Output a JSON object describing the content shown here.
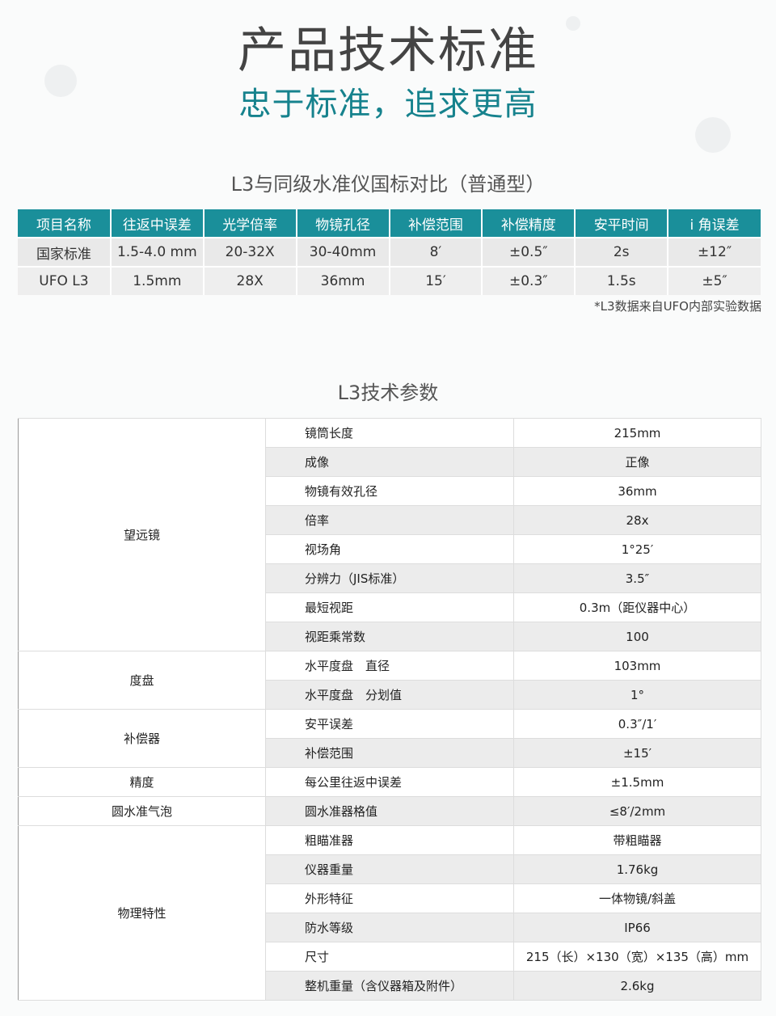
{
  "header": {
    "title": "产品技术标准",
    "subtitle": "忠于标准，追求更高"
  },
  "comparison": {
    "title": "L3与同级水准仪国标对比（普通型）",
    "columns": [
      "项目名称",
      "往返中误差",
      "光学倍率",
      "物镜孔径",
      "补偿范围",
      "补偿精度",
      "安平时间",
      "i 角误差"
    ],
    "rows": [
      [
        "国家标准",
        "1.5-4.0 mm",
        "20-32X",
        "30-40mm",
        "8′",
        "±0.5″",
        "2s",
        "±12″"
      ],
      [
        "UFO L3",
        "1.5mm",
        "28X",
        "36mm",
        "15′",
        "±0.3″",
        "1.5s",
        "±5″"
      ]
    ],
    "note": "*L3数据来自UFO内部实验数据"
  },
  "specs": {
    "title": "L3技术参数",
    "groups": [
      {
        "name": "望远镜",
        "items": [
          [
            "镜筒长度",
            "215mm"
          ],
          [
            "成像",
            "正像"
          ],
          [
            "物镜有效孔径",
            "36mm"
          ],
          [
            "倍率",
            "28x"
          ],
          [
            "视场角",
            "1°25′"
          ],
          [
            "分辨力（JIS标准）",
            "3.5″"
          ],
          [
            "最短视距",
            "0.3m（距仪器中心）"
          ],
          [
            "视距乘常数",
            "100"
          ]
        ]
      },
      {
        "name": "度盘",
        "items": [
          [
            "水平度盘　直径",
            "103mm"
          ],
          [
            "水平度盘　分划值",
            "1°"
          ]
        ]
      },
      {
        "name": "补偿器",
        "items": [
          [
            "安平误差",
            "0.3″/1′"
          ],
          [
            "补偿范围",
            "±15′"
          ]
        ]
      },
      {
        "name": "精度",
        "items": [
          [
            "每公里往返中误差",
            "±1.5mm"
          ]
        ]
      },
      {
        "name": "圆水准气泡",
        "items": [
          [
            "圆水准器格值",
            "≤8′/2mm"
          ]
        ]
      },
      {
        "name": "物理特性",
        "items": [
          [
            "粗瞄准器",
            "带粗瞄器"
          ],
          [
            "仪器重量",
            "1.76kg"
          ],
          [
            "外形特征",
            "一体物镜/斜盖"
          ],
          [
            "防水等级",
            "IP66"
          ],
          [
            "尺寸",
            "215（长）×130（宽）×135（高）mm"
          ],
          [
            "整机重量（含仪器箱及附件）",
            "2.6kg"
          ]
        ]
      }
    ]
  },
  "colors": {
    "accent": "#1a8f9a"
  }
}
